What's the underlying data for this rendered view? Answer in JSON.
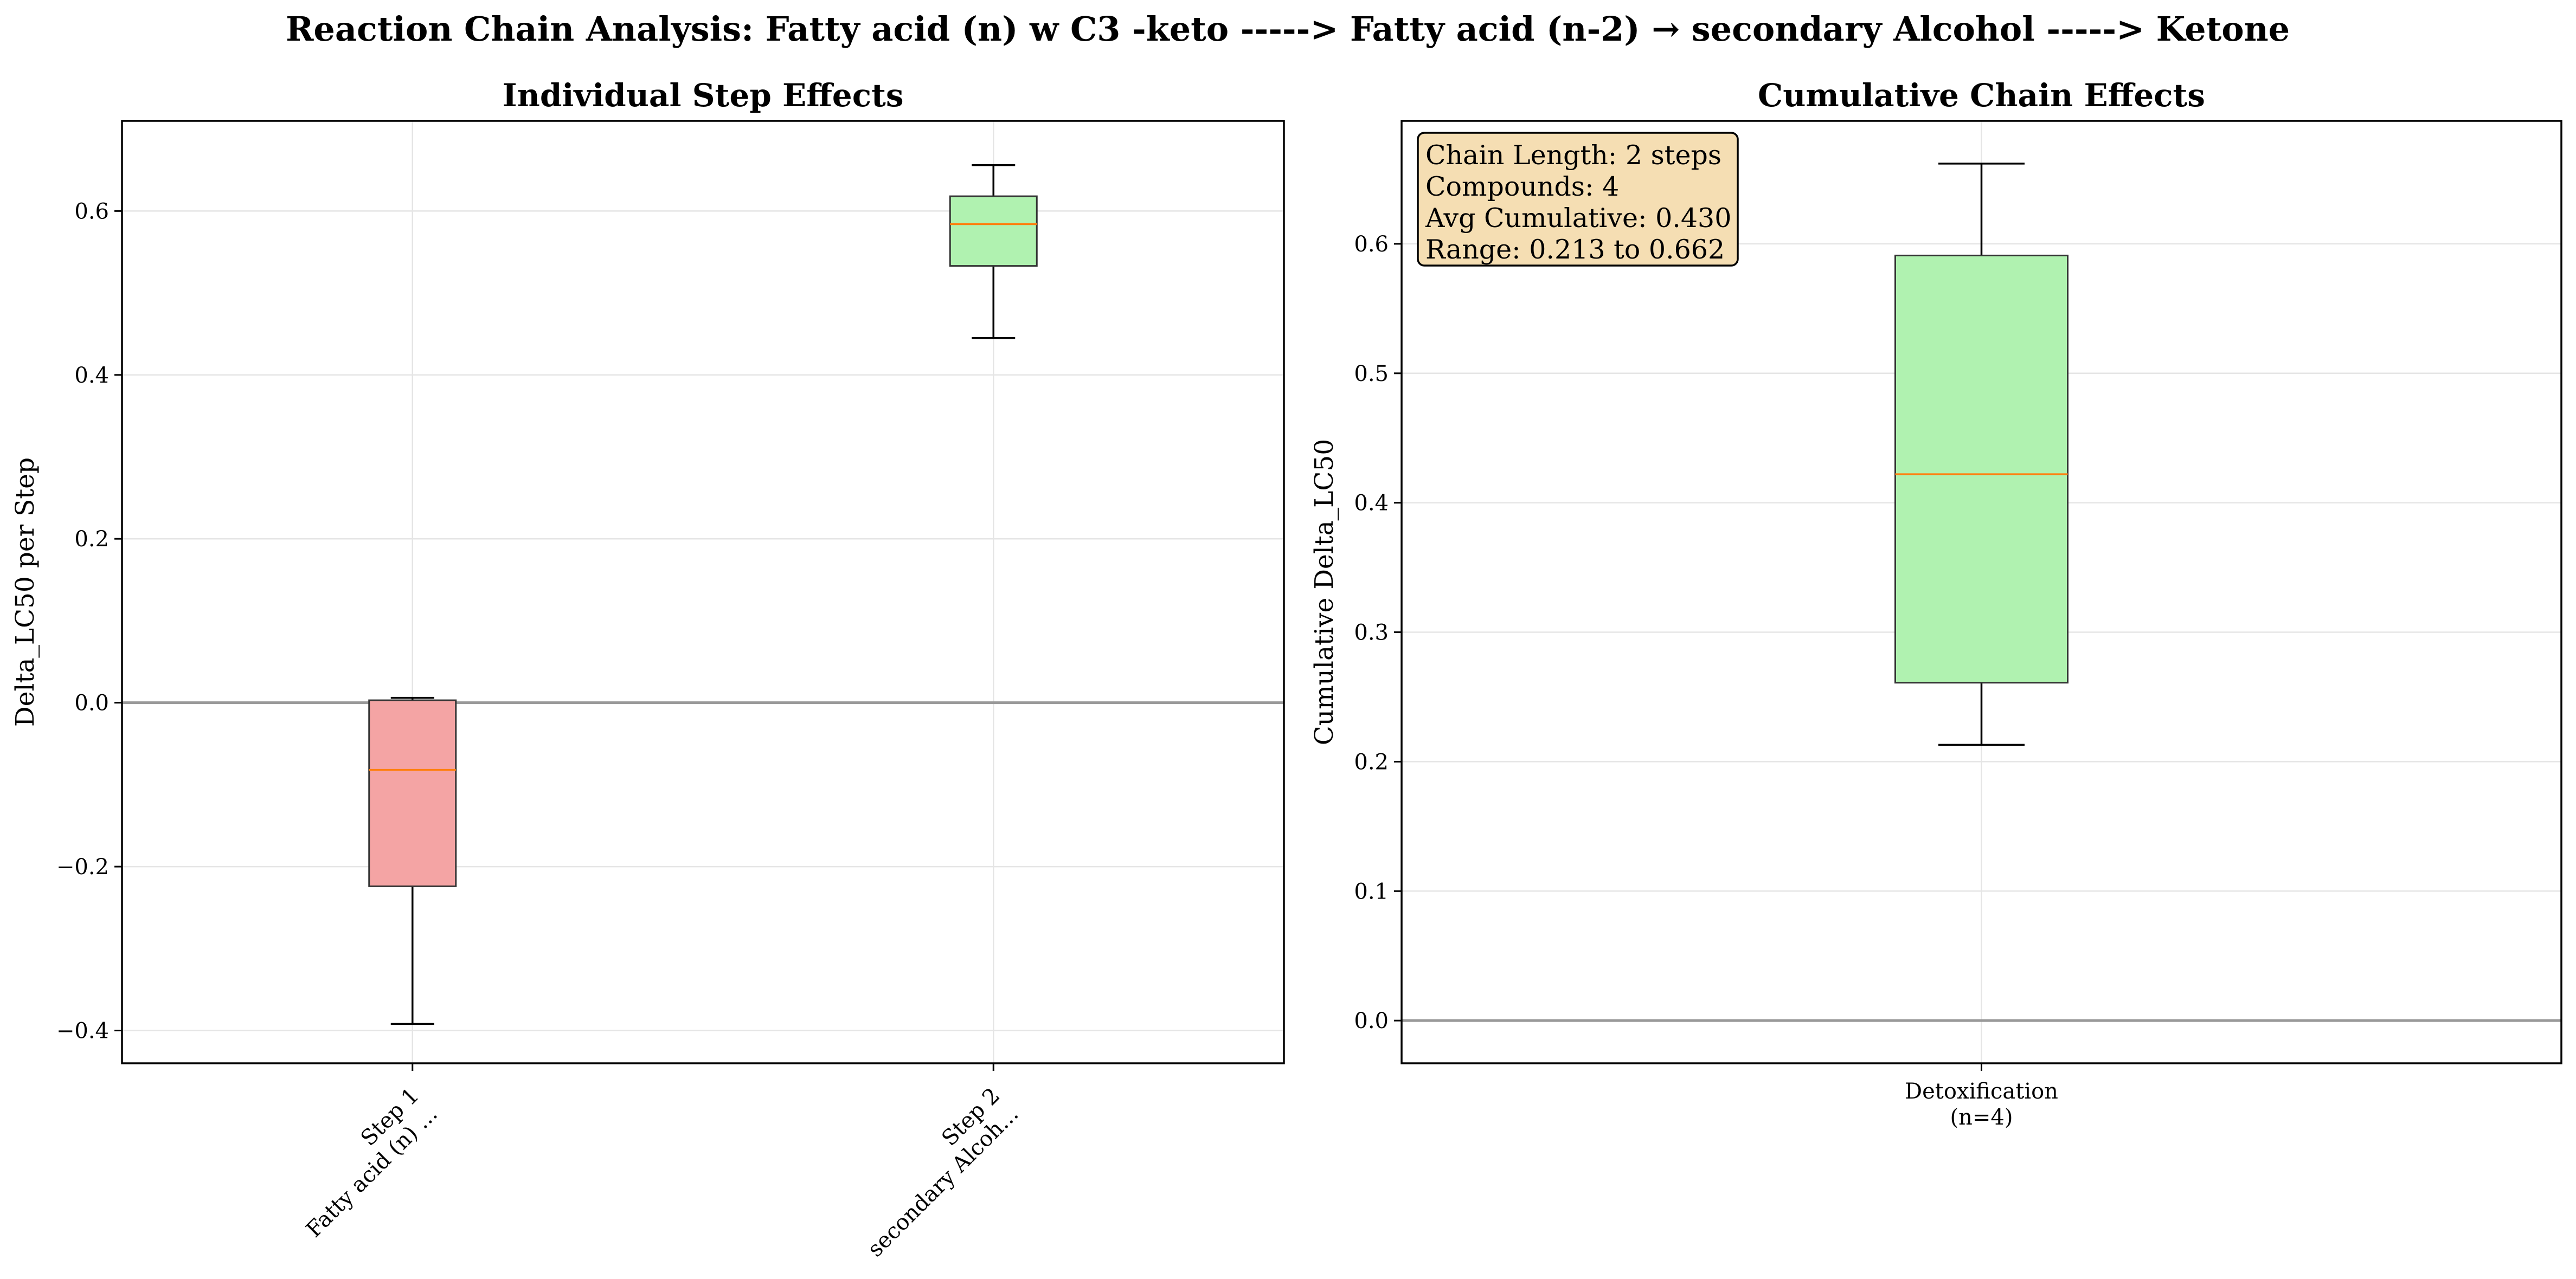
{
  "figure": {
    "title": "Reaction Chain Analysis: Fatty acid (n) w C3 -keto -----> Fatty acid (n-2) → secondary Alcohol -----> Ketone"
  },
  "colors": {
    "negative_box": "#f4a4a4",
    "positive_box": "#b0f2b0",
    "median": "#ff7f0e",
    "zero_line": "#999999",
    "grid": "#e5e5e5",
    "info_box_fill": "#f5deb3"
  },
  "chart_data": [
    {
      "type": "box",
      "title": "Individual Step Effects",
      "xlabel": "",
      "ylabel": "Delta_LC50 per Step",
      "ylim": [
        -0.44,
        0.71
      ],
      "yticks": [
        "−0.4",
        "−0.2",
        "0.0",
        "0.2",
        "0.4",
        "0.6"
      ],
      "ytick_values": [
        -0.4,
        -0.2,
        0.0,
        0.2,
        0.4,
        0.6
      ],
      "grid": true,
      "reference_line": 0.0,
      "categories": [
        "Step 1\nFatty acid (n) ...",
        "Step 2\nsecondary Alcoh..."
      ],
      "boxes": [
        {
          "whislo": -0.392,
          "q1": -0.224,
          "med": -0.082,
          "q3": 0.003,
          "whishi": 0.006,
          "color": "negative"
        },
        {
          "whislo": 0.445,
          "q1": 0.533,
          "med": 0.584,
          "q3": 0.618,
          "whishi": 0.656,
          "color": "positive"
        }
      ]
    },
    {
      "type": "box",
      "title": "Cumulative Chain Effects",
      "xlabel": "",
      "ylabel": "Cumulative Delta_LC50",
      "ylim": [
        -0.033,
        0.695
      ],
      "yticks": [
        "0.0",
        "0.1",
        "0.2",
        "0.3",
        "0.4",
        "0.5",
        "0.6"
      ],
      "ytick_values": [
        0.0,
        0.1,
        0.2,
        0.3,
        0.4,
        0.5,
        0.6
      ],
      "grid": true,
      "reference_line": 0.0,
      "categories": [
        "Detoxification\n(n=4)"
      ],
      "boxes": [
        {
          "whislo": 0.213,
          "q1": 0.261,
          "med": 0.422,
          "q3": 0.591,
          "whishi": 0.662,
          "color": "positive"
        }
      ],
      "annotation": [
        "Chain Length: 2 steps",
        "Compounds: 4",
        "Avg Cumulative: 0.430",
        "Range: 0.213 to 0.662"
      ]
    }
  ]
}
